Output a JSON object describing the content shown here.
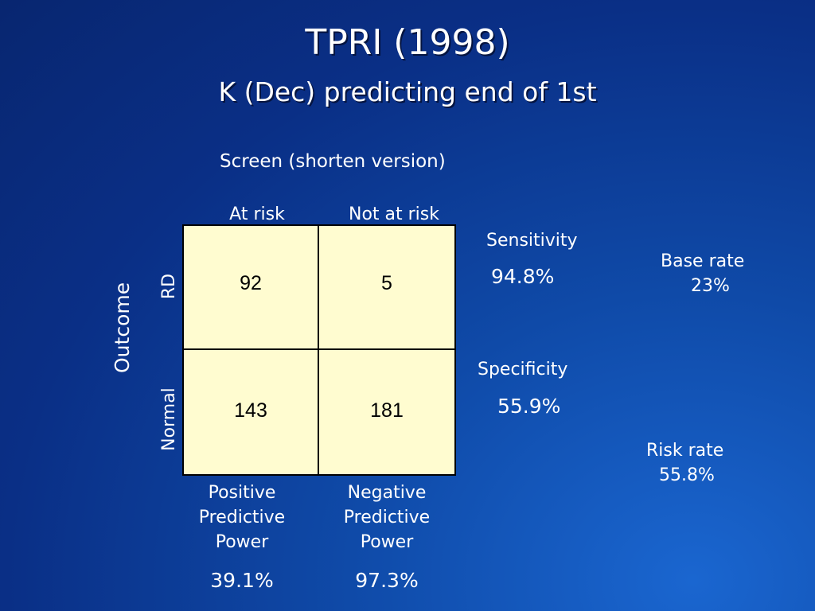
{
  "title": "TPRI (1998)",
  "subtitle": "K (Dec) predicting end of 1st",
  "screen_label": "Screen (shorten version)",
  "columns": {
    "at_risk": "At risk",
    "not_at_risk": "Not at risk"
  },
  "rows": {
    "axis": "Outcome",
    "rd": "RD",
    "normal": "Normal"
  },
  "cells": {
    "rd_at_risk": "92",
    "rd_not_at_risk": "5",
    "normal_at_risk": "143",
    "normal_not_at_risk": "181"
  },
  "metrics": {
    "sensitivity_label": "Sensitivity",
    "sensitivity_value": "94.8%",
    "specificity_label": "Specificity",
    "specificity_value": "55.9%",
    "base_rate_label": "Base rate",
    "base_rate_value": "23%",
    "risk_rate_label": "Risk rate",
    "risk_rate_value": "55.8%",
    "ppp_line1": "Positive",
    "ppp_line2": "Predictive",
    "ppp_line3": "Power",
    "ppp_value": "39.1%",
    "npp_line1": "Negative",
    "npp_line2": "Predictive",
    "npp_line3": "Power",
    "npp_value": "97.3%"
  },
  "colors": {
    "background": "#0f4aa8",
    "table_fill": "#fffcd0",
    "text": "#ffffff"
  }
}
